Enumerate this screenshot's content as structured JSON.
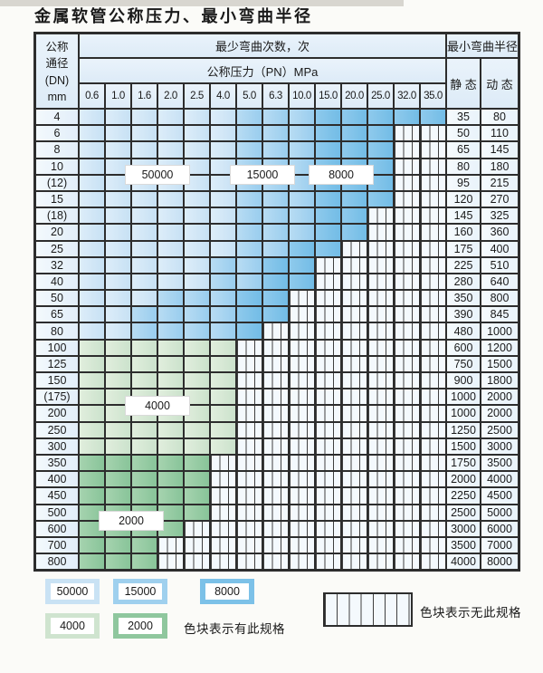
{
  "title": "金属软管公称压力、最小弯曲半径",
  "colors": {
    "band_50000": "#d2e6f6",
    "band_15000": "#a7d2ef",
    "band_8000": "#7fc2e8",
    "band_4000": "#d6e8d6",
    "band_2000": "#95caa2",
    "hatch_bg": "#f4f9fd",
    "border": "#2d2d2d",
    "header_bg": "#e3eef8"
  },
  "table": {
    "header": {
      "dn_lines": [
        "公称",
        "通径",
        "(DN)",
        "mm"
      ],
      "bend_count_label": "最少弯曲次数，次",
      "pressure_label": "公称压力（PN）MPa",
      "pressures": [
        "0.6",
        "1.0",
        "1.6",
        "2.0",
        "2.5",
        "4.0",
        "5.0",
        "6.3",
        "10.0",
        "15.0",
        "20.0",
        "25.0",
        "32.0",
        "35.0"
      ],
      "radius_label": "最小弯曲半径",
      "static_label": "静 态",
      "dynamic_label": "动 态"
    },
    "band_legend_key": {
      "L": "50000",
      "M": "15000",
      "D": "8000",
      "g": "4000",
      "G": "2000",
      "H": "no-spec"
    },
    "rows": [
      {
        "dn": "4",
        "static_radius": "35",
        "dynamic_radius": "80",
        "bands": "LLLLLLMMMDDDDD"
      },
      {
        "dn": "6",
        "static_radius": "50",
        "dynamic_radius": "110",
        "bands": "LLLLLLMMMDDDHH"
      },
      {
        "dn": "8",
        "static_radius": "65",
        "dynamic_radius": "145",
        "bands": "LLLLLLMMMDDDHH"
      },
      {
        "dn": "10",
        "static_radius": "80",
        "dynamic_radius": "180",
        "bands": "LLLLLLMMMDDDHH"
      },
      {
        "dn": "(12)",
        "static_radius": "95",
        "dynamic_radius": "215",
        "bands": "LLLLLLMMMDDDHH"
      },
      {
        "dn": "15",
        "static_radius": "120",
        "dynamic_radius": "270",
        "bands": "LLLLLLMMMDDDHH"
      },
      {
        "dn": "(18)",
        "static_radius": "145",
        "dynamic_radius": "325",
        "bands": "LLLLLLMMMDDHHH"
      },
      {
        "dn": "20",
        "static_radius": "160",
        "dynamic_radius": "360",
        "bands": "LLLLLLMMMDDHHH"
      },
      {
        "dn": "25",
        "static_radius": "175",
        "dynamic_radius": "400",
        "bands": "LLLLLLMMDDHHHH"
      },
      {
        "dn": "32",
        "static_radius": "225",
        "dynamic_radius": "510",
        "bands": "LLLLLMMDDHHHHH"
      },
      {
        "dn": "40",
        "static_radius": "280",
        "dynamic_radius": "640",
        "bands": "LLLLLMMDDHHHHH"
      },
      {
        "dn": "50",
        "static_radius": "350",
        "dynamic_radius": "800",
        "bands": "LLLMMMDDHHHHHH"
      },
      {
        "dn": "65",
        "static_radius": "390",
        "dynamic_radius": "845",
        "bands": "LLMMMMDDHHHHHH"
      },
      {
        "dn": "80",
        "static_radius": "480",
        "dynamic_radius": "1000",
        "bands": "LLMMMMDHHHHHHH"
      },
      {
        "dn": "100",
        "static_radius": "600",
        "dynamic_radius": "1200",
        "bands": "ggggggHHHHHHHH"
      },
      {
        "dn": "125",
        "static_radius": "750",
        "dynamic_radius": "1500",
        "bands": "ggggggHHHHHHHH"
      },
      {
        "dn": "150",
        "static_radius": "900",
        "dynamic_radius": "1800",
        "bands": "ggggggHHHHHHHH"
      },
      {
        "dn": "(175)",
        "static_radius": "1000",
        "dynamic_radius": "2000",
        "bands": "ggggggHHHHHHHH"
      },
      {
        "dn": "200",
        "static_radius": "1000",
        "dynamic_radius": "2000",
        "bands": "ggggggHHHHHHHH"
      },
      {
        "dn": "250",
        "static_radius": "1250",
        "dynamic_radius": "2500",
        "bands": "ggggggHHHHHHHH"
      },
      {
        "dn": "300",
        "static_radius": "1500",
        "dynamic_radius": "3000",
        "bands": "ggggggHHHHHHHH"
      },
      {
        "dn": "350",
        "static_radius": "1750",
        "dynamic_radius": "3500",
        "bands": "GGGGGHHHHHHHHH"
      },
      {
        "dn": "400",
        "static_radius": "2000",
        "dynamic_radius": "4000",
        "bands": "GGGGGHHHHHHHHH"
      },
      {
        "dn": "450",
        "static_radius": "2250",
        "dynamic_radius": "4500",
        "bands": "GGGGGHHHHHHHHH"
      },
      {
        "dn": "500",
        "static_radius": "2500",
        "dynamic_radius": "5000",
        "bands": "GGGGGHHHHHHHHH"
      },
      {
        "dn": "600",
        "static_radius": "3000",
        "dynamic_radius": "6000",
        "bands": "GGGGHHHHHHHHHH"
      },
      {
        "dn": "700",
        "static_radius": "3500",
        "dynamic_radius": "7000",
        "bands": "GGGHHHHHHHHHHH"
      },
      {
        "dn": "800",
        "static_radius": "4000",
        "dynamic_radius": "8000",
        "bands": "GGGHHHHHHHHHHH"
      }
    ],
    "overlays": [
      {
        "text": "50000",
        "after_row": 4,
        "col": 3,
        "span": 2
      },
      {
        "text": "15000",
        "after_row": 4,
        "col": 7,
        "span": 2
      },
      {
        "text": "8000",
        "after_row": 4,
        "col": 10,
        "span": 2
      },
      {
        "text": "4000",
        "after_row": 18,
        "col": 3,
        "span": 2
      },
      {
        "text": "2000",
        "after_row": 25,
        "col": 2,
        "span": 2
      }
    ]
  },
  "legend": {
    "items": [
      {
        "value": "50000",
        "band": "L"
      },
      {
        "value": "15000",
        "band": "M"
      },
      {
        "value": "8000",
        "band": "D"
      },
      {
        "value": "4000",
        "band": "g"
      },
      {
        "value": "2000",
        "band": "G"
      }
    ],
    "has_spec_note": "色块表示有此规格",
    "no_spec_note": "色块表示无此规格"
  }
}
